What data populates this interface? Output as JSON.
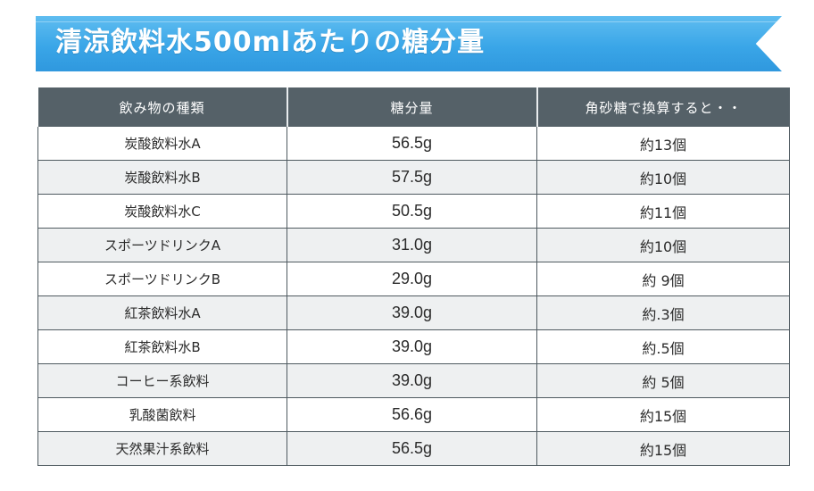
{
  "title": "清涼飲料水500mlあたりの糖分量",
  "table": {
    "headers": [
      "飲み物の種類",
      "糖分量",
      "角砂糖で換算すると・・"
    ],
    "rows": [
      {
        "name": "炭酸飲料水A",
        "sugar": "56.5g",
        "cubes": "約13個"
      },
      {
        "name": "炭酸飲料水B",
        "sugar": "57.5g",
        "cubes": "約10個"
      },
      {
        "name": "炭酸飲料水C",
        "sugar": "50.5g",
        "cubes": "約11個"
      },
      {
        "name": "スポーツドリンクA",
        "sugar": "31.0g",
        "cubes": "約10個"
      },
      {
        "name": "スポーツドリンクB",
        "sugar": "29.0g",
        "cubes": "約 9個"
      },
      {
        "name": "紅茶飲料水A",
        "sugar": "39.0g",
        "cubes": "約.3個"
      },
      {
        "name": "紅茶飲料水B",
        "sugar": "39.0g",
        "cubes": "約.5個"
      },
      {
        "name": "コーヒー系飲料",
        "sugar": "39.0g",
        "cubes": "約 5個"
      },
      {
        "name": "乳酸菌飲料",
        "sugar": "56.6g",
        "cubes": "約15個"
      },
      {
        "name": "天然果汁系飲料",
        "sugar": "56.5g",
        "cubes": "約15個"
      }
    ]
  }
}
